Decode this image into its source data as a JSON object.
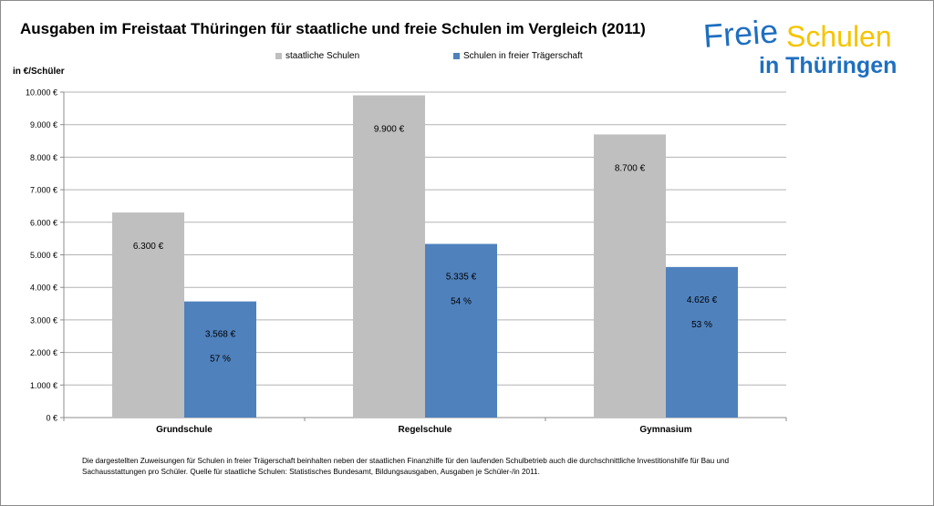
{
  "chart_data": {
    "type": "bar",
    "title": "Ausgaben im Freistaat Thüringen für staatliche und freie Schulen im Vergleich (2011)",
    "ylabel": "in €/Schüler",
    "categories": [
      "Grundschule",
      "Regelschule",
      "Gymnasium"
    ],
    "series": [
      {
        "name": "staatliche Schulen",
        "color": "#bfbfbf",
        "values": [
          6300,
          9900,
          8700
        ],
        "labels": [
          "6.300 €",
          "9.900 €",
          "8.700 €"
        ],
        "percent_labels": [
          "",
          "",
          ""
        ]
      },
      {
        "name": "Schulen in freier Trägerschaft",
        "color": "#4f81bd",
        "values": [
          3568,
          5335,
          4626
        ],
        "labels": [
          "3.568 €",
          "5.335 €",
          "4.626 €"
        ],
        "percent_labels": [
          "57 %",
          "54 %",
          "53 %"
        ]
      }
    ],
    "ylim": [
      0,
      10000
    ],
    "yticks": [
      0,
      1000,
      2000,
      3000,
      4000,
      5000,
      6000,
      7000,
      8000,
      9000,
      10000
    ],
    "ytick_labels": [
      "0 €",
      "1.000 €",
      "2.000 €",
      "3.000 €",
      "4.000 €",
      "5.000 €",
      "6.000 €",
      "7.000 €",
      "8.000 €",
      "9.000 €",
      "10.000 €"
    ],
    "grid": true,
    "legend_position": "top"
  },
  "logo": {
    "line1_a": "Freie",
    "line1_b": "Schulen",
    "line2": "in Thüringen",
    "color_blue": "#1e6fc0",
    "color_yellow": "#f5c400"
  },
  "footnote": "Die dargestellten Zuweisungen für Schulen in freier Trägerschaft beinhalten neben der staatlichen Finanzhilfe für den laufenden Schulbetrieb auch die durchschnittliche Investitionshilfe für Bau und Sachausstattungen pro Schüler. Quelle für staatliche Schulen: Statistisches Bundesamt, Bildungsausgaben, Ausgaben je Schüler-/in 2011."
}
